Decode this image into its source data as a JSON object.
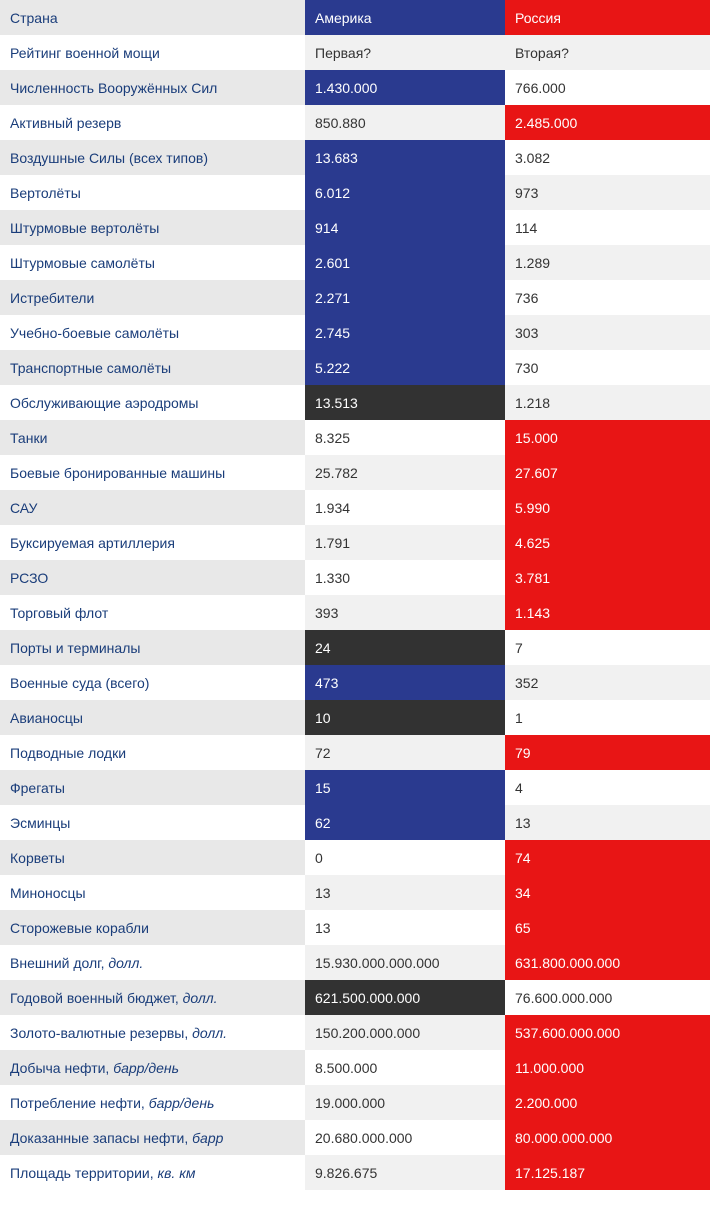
{
  "colors": {
    "usa_header": "#2a3a8f",
    "rus_header": "#e81515",
    "label_even": "#e8e8e8",
    "label_odd": "#ffffff",
    "link_text": "#1a3d7a",
    "dark_cell": "#323232",
    "light_grey": "#f1f1f1",
    "white": "#ffffff",
    "body_text": "#333333"
  },
  "header": {
    "label": "Страна",
    "usa": "Америка",
    "rus": "Россия"
  },
  "rows": [
    {
      "label": "Рейтинг военной мощи",
      "usa": "Первая?",
      "rus": "Вторая?",
      "usa_style": "usa-lgrey",
      "rus_style": "rus-lgrey"
    },
    {
      "label": "Численность Вооружённых Сил",
      "usa": "1.430.000",
      "rus": "766.000",
      "usa_style": "usa-blue",
      "rus_style": "rus-white"
    },
    {
      "label": "Активный резерв",
      "usa": "850.880",
      "rus": "2.485.000",
      "usa_style": "usa-lgrey",
      "rus_style": "rus-red"
    },
    {
      "label": "Воздушные Силы (всех типов)",
      "usa": "13.683",
      "rus": "3.082",
      "usa_style": "usa-blue",
      "rus_style": "rus-white"
    },
    {
      "label": "Вертолёты",
      "usa": "6.012",
      "rus": "973",
      "usa_style": "usa-blue",
      "rus_style": "rus-lgrey"
    },
    {
      "label": "Штурмовые вертолёты",
      "usa": "914",
      "rus": "114",
      "usa_style": "usa-blue",
      "rus_style": "rus-white"
    },
    {
      "label": "Штурмовые самолёты",
      "usa": "2.601",
      "rus": "1.289",
      "usa_style": "usa-blue",
      "rus_style": "rus-lgrey"
    },
    {
      "label": "Истребители",
      "usa": "2.271",
      "rus": "736",
      "usa_style": "usa-blue",
      "rus_style": "rus-white"
    },
    {
      "label": "Учебно-боевые самолёты",
      "usa": "2.745",
      "rus": "303",
      "usa_style": "usa-blue",
      "rus_style": "rus-lgrey"
    },
    {
      "label": "Транспортные самолёты",
      "usa": "5.222",
      "rus": "730",
      "usa_style": "usa-blue",
      "rus_style": "rus-white"
    },
    {
      "label": "Обслуживающие аэродромы",
      "usa": "13.513",
      "rus": "1.218",
      "usa_style": "usa-dark",
      "rus_style": "rus-lgrey"
    },
    {
      "label": "Танки",
      "usa": "8.325",
      "rus": "15.000",
      "usa_style": "usa-white",
      "rus_style": "rus-red"
    },
    {
      "label": "Боевые бронированные машины",
      "usa": "25.782",
      "rus": "27.607",
      "usa_style": "usa-lgrey",
      "rus_style": "rus-red"
    },
    {
      "label": "САУ",
      "usa": "1.934",
      "rus": "5.990",
      "usa_style": "usa-white",
      "rus_style": "rus-red"
    },
    {
      "label": "Буксируемая артиллерия",
      "usa": "1.791",
      "rus": "4.625",
      "usa_style": "usa-lgrey",
      "rus_style": "rus-red"
    },
    {
      "label": "РСЗО",
      "usa": "1.330",
      "rus": "3.781",
      "usa_style": "usa-white",
      "rus_style": "rus-red"
    },
    {
      "label": "Торговый флот",
      "usa": "393",
      "rus": "1.143",
      "usa_style": "usa-lgrey",
      "rus_style": "rus-red"
    },
    {
      "label": "Порты и терминалы",
      "usa": "24",
      "rus": "7",
      "usa_style": "usa-dark",
      "rus_style": "rus-white"
    },
    {
      "label": "Военные суда (всего)",
      "usa": "473",
      "rus": "352",
      "usa_style": "usa-blue",
      "rus_style": "rus-lgrey"
    },
    {
      "label": "Авианосцы",
      "usa": "10",
      "rus": "1",
      "usa_style": "usa-dark",
      "rus_style": "rus-white"
    },
    {
      "label": "Подводные лодки",
      "usa": "72",
      "rus": "79",
      "usa_style": "usa-lgrey",
      "rus_style": "rus-red"
    },
    {
      "label": "Фрегаты",
      "usa": "15",
      "rus": "4",
      "usa_style": "usa-blue",
      "rus_style": "rus-white"
    },
    {
      "label": "Эсминцы",
      "usa": "62",
      "rus": "13",
      "usa_style": "usa-blue",
      "rus_style": "rus-lgrey"
    },
    {
      "label": "Корветы",
      "usa": "0",
      "rus": "74",
      "usa_style": "usa-white",
      "rus_style": "rus-red"
    },
    {
      "label": "Миноносцы",
      "usa": "13",
      "rus": "34",
      "usa_style": "usa-lgrey",
      "rus_style": "rus-red"
    },
    {
      "label": "Сторожевые корабли",
      "usa": "13",
      "rus": "65",
      "usa_style": "usa-white",
      "rus_style": "rus-red"
    },
    {
      "label": "Внешний долг, <em>долл.</em>",
      "usa": "15.930.000.000.000",
      "rus": "631.800.000.000",
      "usa_style": "usa-lgrey",
      "rus_style": "rus-red",
      "html": true
    },
    {
      "label": "Годовой военный бюджет, <em>долл.</em>",
      "usa": "621.500.000.000",
      "rus": "76.600.000.000",
      "usa_style": "usa-dark",
      "rus_style": "rus-white",
      "html": true
    },
    {
      "label": "Золото-валютные резервы, <em>долл.</em>",
      "usa": "150.200.000.000",
      "rus": "537.600.000.000",
      "usa_style": "usa-lgrey",
      "rus_style": "rus-red",
      "html": true
    },
    {
      "label": "Добыча нефти, <em>барр/день</em>",
      "usa": "8.500.000",
      "rus": "11.000.000",
      "usa_style": "usa-white",
      "rus_style": "rus-red",
      "html": true
    },
    {
      "label": "Потребление нефти, <em>барр/день</em>",
      "usa": "19.000.000",
      "rus": "2.200.000",
      "usa_style": "usa-lgrey",
      "rus_style": "rus-red",
      "html": true
    },
    {
      "label": "Доказанные запасы нефти, <em>барр</em>",
      "usa": "20.680.000.000",
      "rus": "80.000.000.000",
      "usa_style": "usa-white",
      "rus_style": "rus-red",
      "html": true
    },
    {
      "label": "Площадь территории, <em>кв. км</em>",
      "usa": "9.826.675",
      "rus": "17.125.187",
      "usa_style": "usa-lgrey",
      "rus_style": "rus-red",
      "html": true
    }
  ]
}
